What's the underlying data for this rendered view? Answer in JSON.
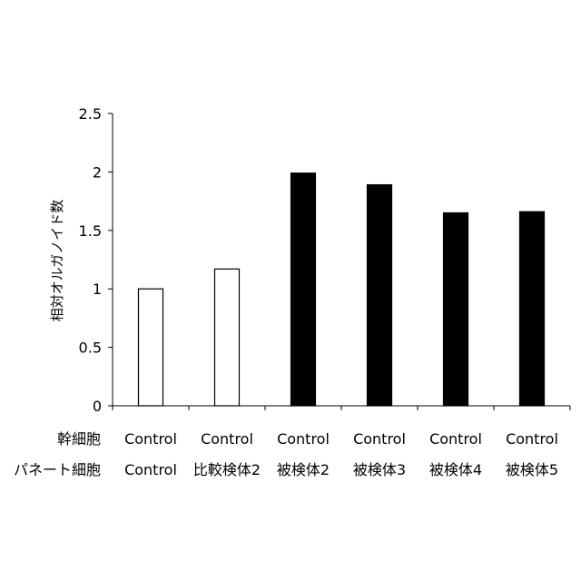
{
  "chart_data": {
    "type": "bar",
    "ylabel": "相対オルガノイド数",
    "ylim": [
      0,
      2.5
    ],
    "yticks": [
      "0",
      "0.5",
      "1",
      "1.5",
      "2",
      "2.5"
    ],
    "grid": false,
    "legend": "none",
    "row_labels": [
      "幹細胞",
      "パネート細胞"
    ],
    "categories": [
      [
        "Control",
        "Control"
      ],
      [
        "Control",
        "比較検体2"
      ],
      [
        "Control",
        "被検体2"
      ],
      [
        "Control",
        "被検体3"
      ],
      [
        "Control",
        "被検体4"
      ],
      [
        "Control",
        "被検体5"
      ]
    ],
    "values": [
      1.0,
      1.17,
      1.99,
      1.89,
      1.65,
      1.66
    ],
    "fills": [
      "#ffffff",
      "#ffffff",
      "#000000",
      "#000000",
      "#000000",
      "#000000"
    ]
  }
}
